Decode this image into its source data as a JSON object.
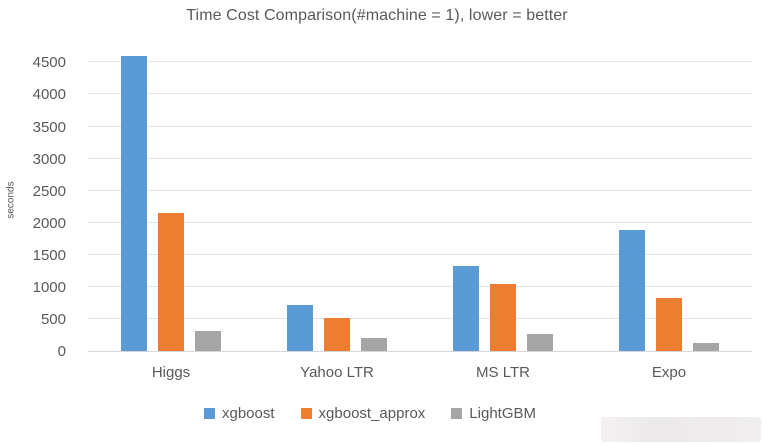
{
  "chart_data": {
    "type": "bar",
    "title": "Time Cost Comparison(#machine = 1), lower = better",
    "xlabel": "",
    "ylabel": "seconds",
    "categories": [
      "Higgs",
      "Yahoo LTR",
      "MS LTR",
      "Expo"
    ],
    "series": [
      {
        "name": "xgboost",
        "color": "#5B9BD5",
        "values": [
          4600,
          720,
          1330,
          1890
        ]
      },
      {
        "name": "xgboost_approx",
        "color": "#ED7D31",
        "values": [
          2150,
          510,
          1050,
          820
        ]
      },
      {
        "name": "LightGBM",
        "color": "#A5A5A5",
        "values": [
          310,
          200,
          265,
          125
        ]
      }
    ],
    "ylim": [
      0,
      4600
    ],
    "yticks": [
      0,
      500,
      1000,
      1500,
      2000,
      2500,
      3000,
      3500,
      4000,
      4500
    ],
    "grid": true,
    "legend_position": "bottom"
  },
  "colors": {
    "text": "#595959",
    "gridline": "#E4E4E4",
    "axis_line": "#D6D6D6",
    "background": "#FFFFFF"
  }
}
